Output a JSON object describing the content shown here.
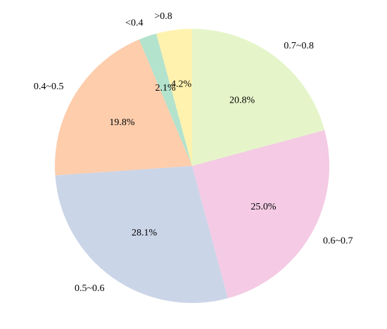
{
  "chart_data": {
    "type": "pie",
    "title": "",
    "start_angle_deg": 90,
    "direction": "clockwise",
    "legend": "none",
    "slices": [
      {
        "label": "0.7~0.8",
        "value": 20.8,
        "display": "20.8%",
        "color": "#e5f5c9"
      },
      {
        "label": "0.6~0.7",
        "value": 25.0,
        "display": "25.0%",
        "color": "#f4cae4"
      },
      {
        "label": "0.5~0.6",
        "value": 28.1,
        "display": "28.1%",
        "color": "#cbd5e8"
      },
      {
        "label": "0.4~0.5",
        "value": 19.8,
        "display": "19.8%",
        "color": "#fdcdac"
      },
      {
        "label": "<0.4",
        "value": 2.1,
        "display": "2.1%",
        "color": "#b3e2cd"
      },
      {
        "label": ">0.8",
        "value": 4.2,
        "display": "4.2%",
        "color": "#fff2ae"
      }
    ]
  }
}
